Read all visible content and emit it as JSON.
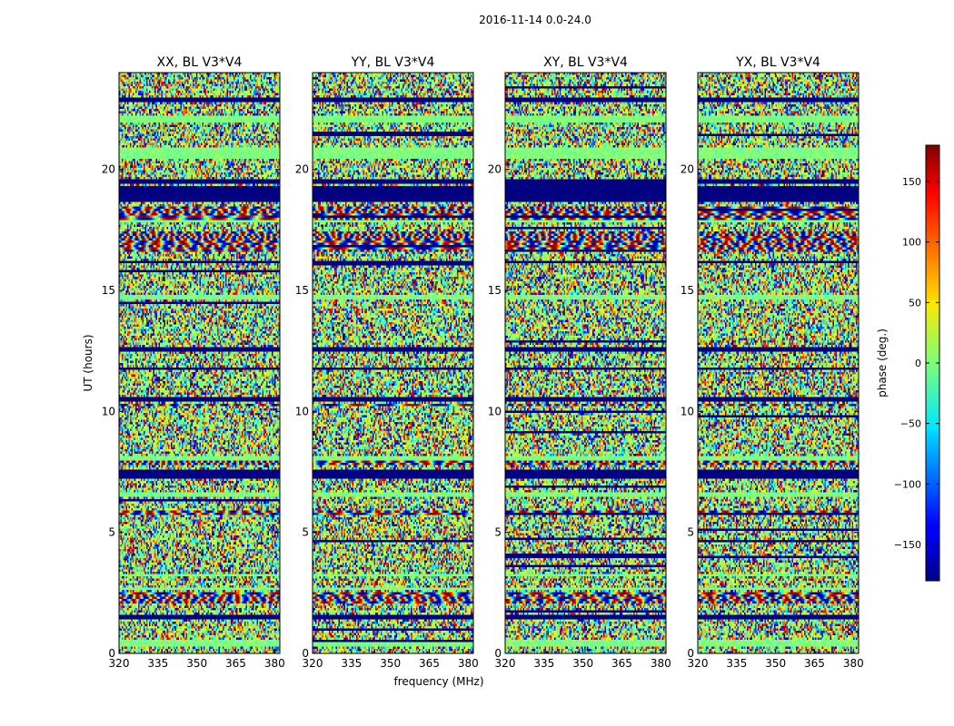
{
  "chart_data": {
    "type": "heatmap",
    "title": "2016-11-14 0.0-24.0",
    "xlabel": "frequency (MHz)",
    "ylabel": "UT (hours)",
    "xlim": [
      320,
      382
    ],
    "ylim": [
      0,
      24
    ],
    "xticks": [
      320,
      335,
      350,
      365,
      380
    ],
    "yticks": [
      0,
      5,
      10,
      15,
      20
    ],
    "panels": [
      {
        "title": "XX, BL V3*V4",
        "seed": 11
      },
      {
        "title": "YY, BL V3*V4",
        "seed": 23
      },
      {
        "title": "XY, BL V3*V4",
        "seed": 37
      },
      {
        "title": "YX, BL V3*V4",
        "seed": 53
      }
    ],
    "colorbar": {
      "label": "phase (deg.)",
      "range": [
        -180,
        180
      ],
      "ticks": [
        -150,
        -100,
        -50,
        0,
        50,
        100,
        150
      ],
      "tick_labels": [
        "−150",
        "−100",
        "−50",
        "0",
        "50",
        "100",
        "150"
      ],
      "colormap": "jet"
    },
    "flagged_bands_hours": [
      [
        1.4,
        1.6
      ],
      [
        7.2,
        7.6
      ],
      [
        10.4,
        10.55
      ],
      [
        11.7,
        11.85
      ],
      [
        12.5,
        12.65
      ],
      [
        16.1,
        16.2
      ],
      [
        18.7,
        19.3
      ],
      [
        19.4,
        19.6
      ],
      [
        22.8,
        22.95
      ]
    ],
    "calm_bands_hours": [
      [
        0.3,
        0.55
      ],
      [
        2.6,
        2.75
      ],
      [
        3.2,
        3.3
      ],
      [
        6.5,
        6.7
      ],
      [
        8.0,
        8.2
      ],
      [
        14.6,
        14.8
      ],
      [
        17.8,
        17.95
      ],
      [
        20.4,
        20.9
      ],
      [
        21.9,
        22.2
      ]
    ],
    "fringe_bands_hours": [
      [
        2.1,
        2.5
      ],
      [
        5.7,
        5.95
      ],
      [
        7.8,
        8.0
      ],
      [
        10.2,
        10.35
      ],
      [
        16.6,
        17.4
      ],
      [
        17.95,
        18.5
      ],
      [
        19.0,
        19.3
      ]
    ]
  }
}
